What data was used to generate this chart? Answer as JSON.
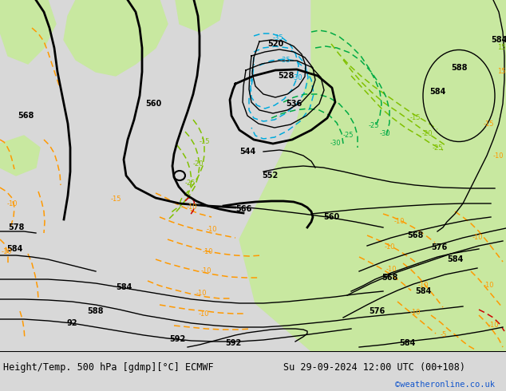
{
  "title_left": "Height/Temp. 500 hPa [gdmp][°C] ECMWF",
  "title_right": "Su 29-09-2024 12:00 UTC (00+108)",
  "credit": "©weatheronline.co.uk",
  "bg_map": "#d8d8d8",
  "bg_green": "#c8e6a0",
  "bottom_bar": "#e0e0e0",
  "black_lw": 2.0,
  "thin_lw": 1.0,
  "font_title": 8.5,
  "font_credit": 7.5,
  "font_label": 7,
  "credit_color": "#1155cc"
}
